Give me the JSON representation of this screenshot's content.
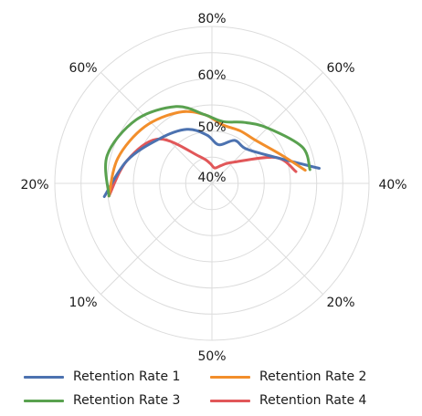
{
  "chart_data": {
    "type": "line",
    "polar": true,
    "grid": true,
    "angular_tick_labels": [
      "80%",
      "60%",
      "40%",
      "20%",
      "50%",
      "10%",
      "20%",
      "60%"
    ],
    "radial_tick_labels": [
      "40%",
      "50%",
      "60%"
    ],
    "legend_position": "bottom",
    "series": [
      {
        "name": "Retention Rate 1",
        "color": "#4c72b0",
        "points": [
          [
            0,
            0.25
          ],
          [
            8,
            0.69
          ],
          [
            22,
            0.44
          ],
          [
            45,
            0.31
          ],
          [
            62,
            0.31
          ],
          [
            80,
            0.25
          ],
          [
            96,
            0.31
          ],
          [
            115,
            0.38
          ],
          [
            140,
            0.44
          ],
          [
            165,
            0.56
          ],
          [
            187,
            0.69
          ]
        ]
      },
      {
        "name": "Retention Rate 2",
        "color": "#f28e2b",
        "points": [
          [
            0,
            0.25
          ],
          [
            8,
            0.6
          ],
          [
            22,
            0.48
          ],
          [
            45,
            0.39
          ],
          [
            62,
            0.38
          ],
          [
            80,
            0.38
          ],
          [
            96,
            0.44
          ],
          [
            115,
            0.5
          ],
          [
            140,
            0.56
          ],
          [
            165,
            0.62
          ],
          [
            187,
            0.66
          ]
        ]
      },
      {
        "name": "Retention Rate 3",
        "color": "#59a14f",
        "points": [
          [
            0,
            0.25
          ],
          [
            8,
            0.63
          ],
          [
            22,
            0.62
          ],
          [
            45,
            0.5
          ],
          [
            62,
            0.44
          ],
          [
            80,
            0.4
          ],
          [
            96,
            0.44
          ],
          [
            115,
            0.54
          ],
          [
            140,
            0.63
          ],
          [
            165,
            0.69
          ],
          [
            187,
            0.66
          ]
        ]
      },
      {
        "name": "Retention Rate 4",
        "color": "#e15759",
        "points": [
          [
            0,
            0.25
          ],
          [
            8,
            0.54
          ],
          [
            22,
            0.44
          ],
          [
            45,
            0.19
          ],
          [
            62,
            0.13
          ],
          [
            80,
            0.1
          ],
          [
            96,
            0.13
          ],
          [
            115,
            0.19
          ],
          [
            140,
            0.44
          ],
          [
            165,
            0.56
          ],
          [
            187,
            0.66
          ]
        ]
      }
    ]
  }
}
